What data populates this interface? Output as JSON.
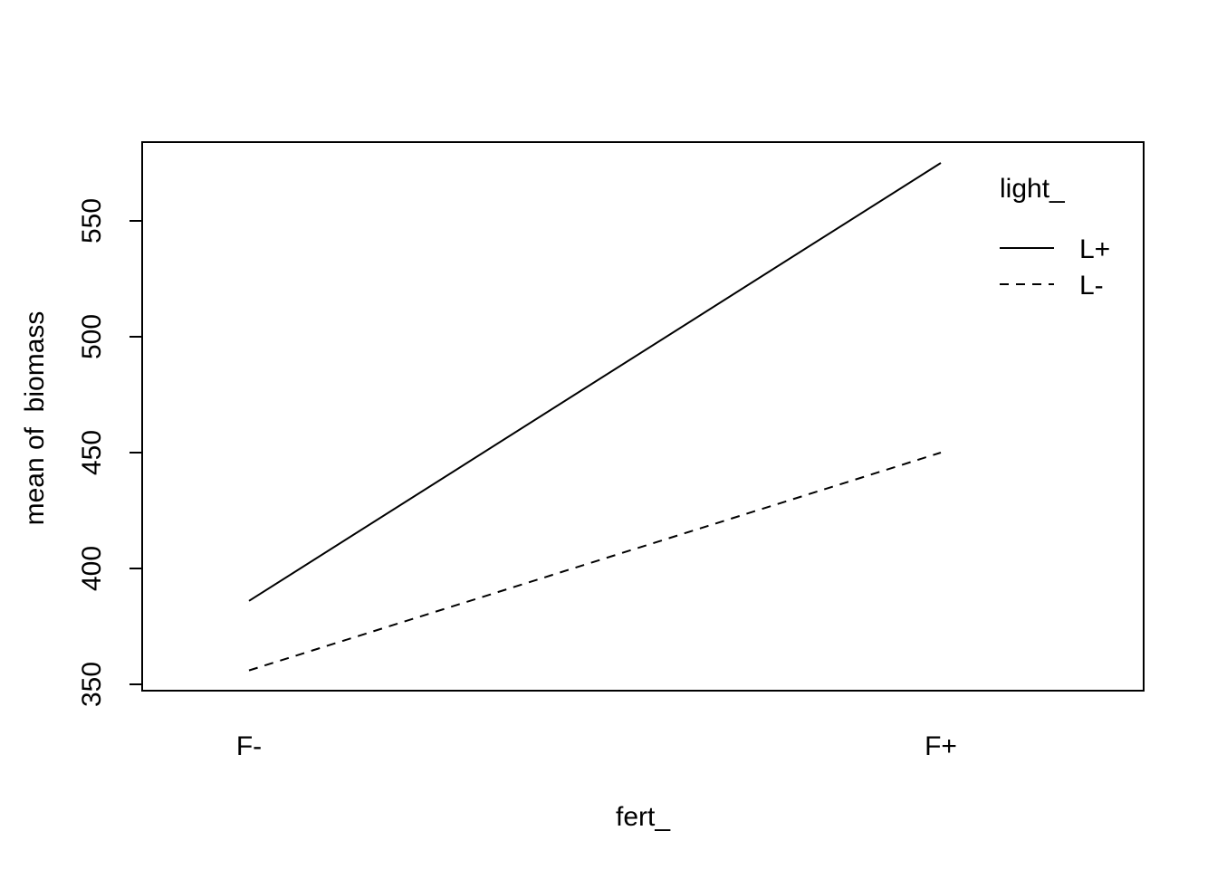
{
  "chart_data": {
    "type": "line",
    "title": "",
    "xlabel": "fert_",
    "ylabel": "mean of  biomass",
    "categories": [
      "F-",
      "F+"
    ],
    "ylim": [
      350,
      575
    ],
    "yticks": [
      350,
      400,
      450,
      500,
      550
    ],
    "grid": false,
    "legend": {
      "title": "light_",
      "placement": "top-right",
      "entries": [
        {
          "label": "L+",
          "style": "solid"
        },
        {
          "label": "L-",
          "style": "dashed"
        }
      ]
    },
    "series": [
      {
        "name": "L+",
        "style": "solid",
        "values": [
          386,
          575
        ]
      },
      {
        "name": "L-",
        "style": "dashed",
        "values": [
          356,
          450
        ]
      }
    ],
    "colors": {
      "line": "#000000",
      "background": "#ffffff"
    }
  }
}
